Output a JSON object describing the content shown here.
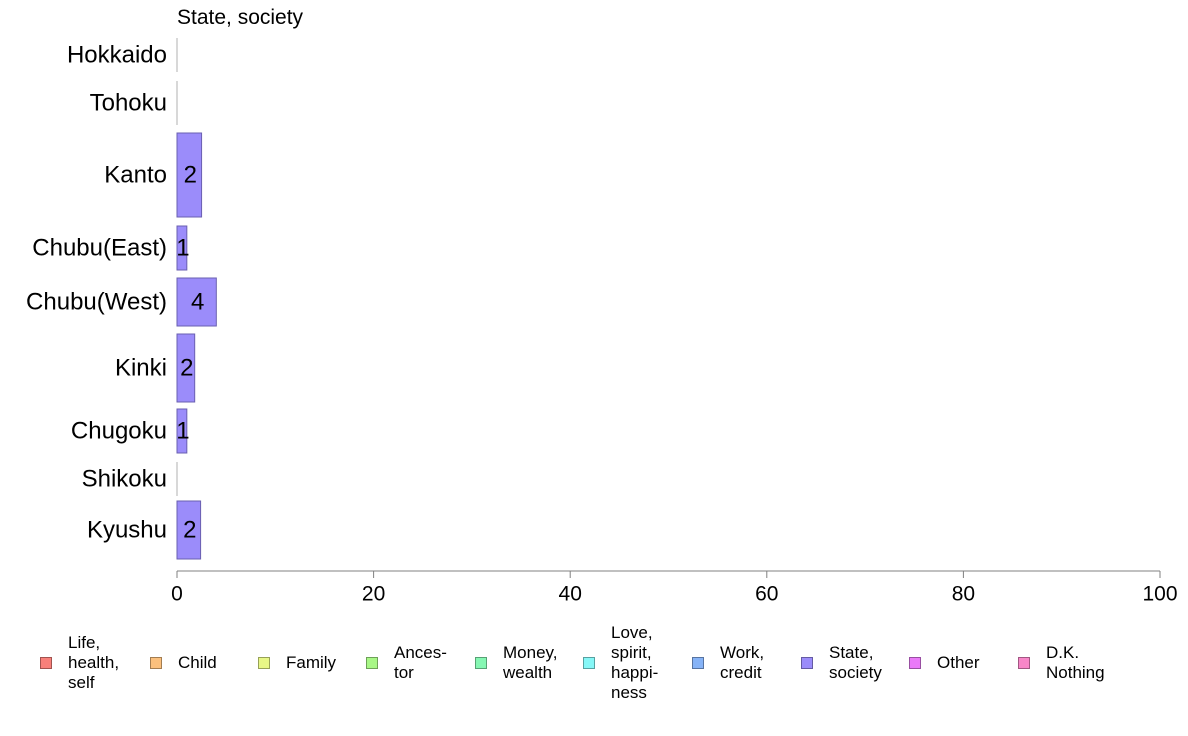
{
  "chart_data": {
    "type": "bar",
    "orientation": "horizontal",
    "stacked": true,
    "title": "State, society",
    "categories": [
      "Hokkaido",
      "Tohoku",
      "Kanto",
      "Chubu(East)",
      "Chubu(West)",
      "Kinki",
      "Chugoku",
      "Shikoku",
      "Kyushu"
    ],
    "series": [
      {
        "name": "Life,\nhealth,\nself",
        "color": "#f8807a",
        "values": [
          0,
          0,
          0,
          0,
          0,
          0,
          0,
          0,
          0
        ]
      },
      {
        "name": "Child",
        "color": "#fbc07d",
        "values": [
          0,
          0,
          0,
          0,
          0,
          0,
          0,
          0,
          0
        ]
      },
      {
        "name": "Family",
        "color": "#e8f786",
        "values": [
          0,
          0,
          0,
          0,
          0,
          0,
          0,
          0,
          0
        ]
      },
      {
        "name": "Ances-\ntor",
        "color": "#a8f786",
        "values": [
          0,
          0,
          0,
          0,
          0,
          0,
          0,
          0,
          0
        ]
      },
      {
        "name": "Money,\nwealth",
        "color": "#86f7b3",
        "values": [
          0,
          0,
          0,
          0,
          0,
          0,
          0,
          0,
          0
        ]
      },
      {
        "name": "Love,\nspirit,\nhappi-\nness",
        "color": "#86f7f7",
        "values": [
          0,
          0,
          0,
          0,
          0,
          0,
          0,
          0,
          0
        ]
      },
      {
        "name": "Work,\ncredit",
        "color": "#86b3f7",
        "values": [
          0,
          0,
          0,
          0,
          0,
          0,
          0,
          0,
          0
        ]
      },
      {
        "name": "State,\nsociety",
        "color": "#9b8cfa",
        "values": [
          0,
          0,
          2.5,
          1,
          4,
          1.8,
          1,
          0,
          2.4
        ],
        "labels": [
          "",
          "",
          "2",
          "1",
          "4",
          "2",
          "1",
          "",
          "2"
        ]
      },
      {
        "name": "Other",
        "color": "#ea7af8",
        "values": [
          0,
          0,
          0,
          0,
          0,
          0,
          0,
          0,
          0
        ]
      },
      {
        "name": "D.K.\nNothing",
        "color": "#f886c8",
        "values": [
          0,
          0,
          0,
          0,
          0,
          0,
          0,
          0,
          0
        ]
      }
    ],
    "xlim": [
      0,
      100
    ],
    "xticks": [
      "0",
      "20",
      "40",
      "60",
      "80",
      "100"
    ],
    "xlabel": "",
    "ylabel": "",
    "grid": false,
    "legend": "bottom"
  }
}
